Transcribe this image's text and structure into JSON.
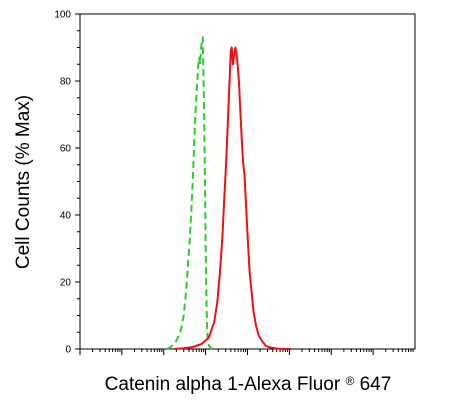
{
  "chart_data": {
    "type": "line",
    "title": "",
    "xlabel": "Catenin alpha 1-Alexa Fluor",
    "xlabel_mark": "®",
    "xlabel_suffix": " 647",
    "ylabel": "Cell Counts (% Max)",
    "xscale": "log",
    "xlim": [
      1,
      100000000
    ],
    "ylim": [
      0,
      100
    ],
    "yticks": [
      0,
      20,
      40,
      60,
      80,
      100
    ],
    "ytick_labels": [
      "0",
      "20",
      "40",
      "60",
      "80",
      "100"
    ],
    "xtick_labels": [],
    "grid": false,
    "legend": "none",
    "series": [
      {
        "color": "#2ecc2e",
        "dash": "dashed",
        "x": [
          120,
          145,
          175,
          200,
          230,
          260,
          300,
          340,
          380,
          420,
          460,
          500,
          540,
          580,
          620,
          660,
          700,
          740,
          780,
          820,
          850,
          880,
          920,
          960,
          1000,
          1050,
          1100,
          1200,
          1400
        ],
        "y": [
          0,
          0.5,
          1.5,
          2.5,
          4,
          6,
          10,
          17,
          25,
          33,
          42,
          52,
          63,
          72,
          78,
          84,
          87,
          85,
          90,
          92,
          93,
          84,
          70,
          52,
          32,
          14,
          4,
          1,
          0
        ]
      },
      {
        "color": "#ee1111",
        "dash": "solid",
        "x": [
          180,
          300,
          500,
          800,
          1200,
          1600,
          1900,
          2200,
          2500,
          2800,
          3100,
          3400,
          3700,
          4000,
          4200,
          4500,
          4800,
          5100,
          5500,
          5900,
          6300,
          6700,
          7200,
          7800,
          8500,
          9300,
          10200,
          11200,
          12500,
          14000,
          16000,
          18500,
          22000,
          27000,
          33000,
          42000,
          55000,
          75000,
          110000
        ],
        "y": [
          0,
          0.2,
          0.6,
          1.5,
          3.5,
          8,
          14,
          23,
          33,
          45,
          56,
          68,
          79,
          89,
          90,
          85,
          88,
          90,
          88,
          84,
          79,
          72,
          64,
          56,
          52,
          42,
          32,
          23,
          17,
          11,
          7,
          4,
          2.5,
          1,
          0.5,
          0.3,
          0.1,
          0,
          0
        ]
      }
    ]
  }
}
